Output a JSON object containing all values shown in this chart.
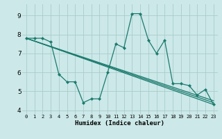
{
  "xlabel": "Humidex (Indice chaleur)",
  "background_color": "#cce8e8",
  "grid_color": "#aacccc",
  "line_color": "#1a7a6e",
  "xlim": [
    -0.5,
    23.5
  ],
  "ylim": [
    3.8,
    9.6
  ],
  "yticks": [
    4,
    5,
    6,
    7,
    8,
    9
  ],
  "xticks": [
    0,
    1,
    2,
    3,
    4,
    5,
    6,
    7,
    8,
    9,
    10,
    11,
    12,
    13,
    14,
    15,
    16,
    17,
    18,
    19,
    20,
    21,
    22,
    23
  ],
  "lines": [
    {
      "x": [
        0,
        1,
        2,
        3,
        4,
        5,
        6,
        7,
        8,
        9,
        10,
        11,
        12,
        13,
        14,
        15,
        16,
        17,
        18,
        19,
        20,
        21,
        22,
        23
      ],
      "y": [
        7.8,
        7.8,
        7.8,
        7.6,
        5.9,
        5.5,
        5.5,
        4.4,
        4.6,
        4.6,
        6.0,
        7.5,
        7.3,
        9.1,
        9.1,
        7.7,
        7.0,
        7.7,
        5.4,
        5.4,
        5.3,
        4.8,
        5.1,
        4.3
      ],
      "has_markers": true
    },
    {
      "x": [
        0,
        23
      ],
      "y": [
        7.8,
        4.3
      ],
      "has_markers": false
    },
    {
      "x": [
        0,
        23
      ],
      "y": [
        7.8,
        4.4
      ],
      "has_markers": false
    },
    {
      "x": [
        0,
        23
      ],
      "y": [
        7.8,
        4.5
      ],
      "has_markers": false
    }
  ]
}
